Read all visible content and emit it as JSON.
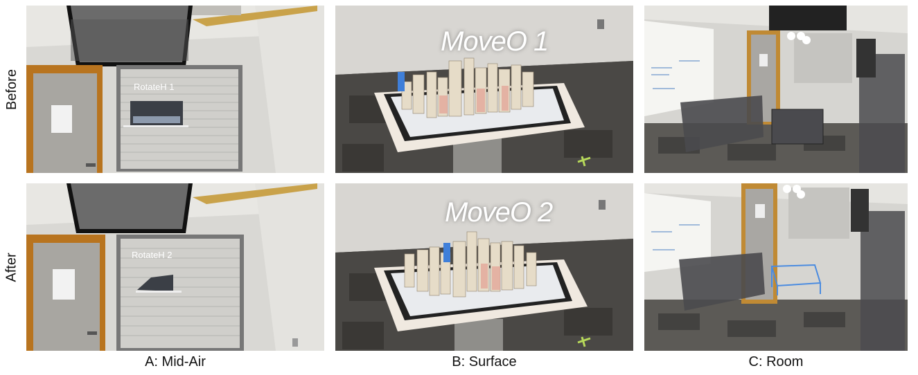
{
  "rows": [
    {
      "label": "Before"
    },
    {
      "label": "After"
    }
  ],
  "columns": [
    {
      "caption": "A: Mid-Air",
      "before_text": "RotateH 1",
      "after_text": "RotateH 2"
    },
    {
      "caption": "B: Surface",
      "before_text": "MoveO 1",
      "after_text": "MoveO 2"
    },
    {
      "caption": "C: Room"
    }
  ]
}
